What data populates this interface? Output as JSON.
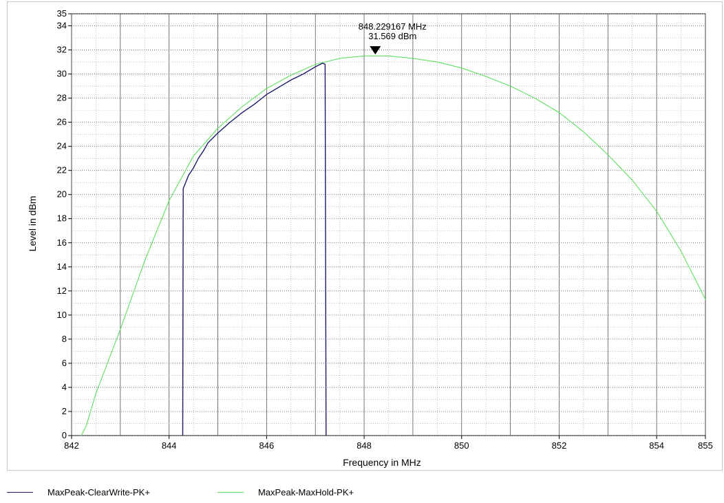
{
  "chart_data": {
    "type": "line",
    "xlabel": "Frequency in MHz",
    "ylabel": "Level in dBm",
    "xlim": [
      842,
      855
    ],
    "ylim": [
      0,
      35
    ],
    "x_ticks": [
      842,
      844,
      846,
      848,
      850,
      852,
      854,
      855
    ],
    "y_ticks": [
      0,
      2,
      4,
      6,
      8,
      10,
      12,
      14,
      16,
      18,
      20,
      22,
      24,
      26,
      28,
      30,
      32,
      34,
      35
    ],
    "grid": true,
    "legend_position": "bottom",
    "marker": {
      "x": 848.229167,
      "y": 31.569,
      "label_freq": "848.229167 MHz",
      "label_level": "31.569 dBm"
    },
    "series": [
      {
        "name": "MaxPeak-ClearWrite-PK+",
        "color": "#1a1a6e",
        "x": [
          844.28,
          844.29,
          844.32,
          844.4,
          844.5,
          844.6,
          844.7,
          844.8,
          845.0,
          845.25,
          845.5,
          845.75,
          846.0,
          846.25,
          846.5,
          846.75,
          847.0,
          847.15,
          847.2,
          847.22
        ],
        "y": [
          0,
          20.5,
          20.8,
          21.6,
          22.2,
          23.0,
          23.6,
          24.3,
          25.1,
          26.0,
          26.8,
          27.5,
          28.3,
          28.9,
          29.5,
          30.0,
          30.6,
          30.9,
          30.8,
          0
        ]
      },
      {
        "name": "MaxPeak-MaxHold-PK+",
        "color": "#5ee05e",
        "x": [
          842.2,
          842.3,
          842.5,
          843.0,
          843.5,
          844.0,
          844.5,
          845.0,
          845.5,
          846.0,
          846.5,
          847.0,
          847.5,
          848.0,
          848.5,
          849.0,
          849.5,
          850.0,
          850.5,
          851.0,
          851.5,
          852.0,
          852.5,
          853.0,
          853.5,
          854.0,
          854.5,
          855.0
        ],
        "y": [
          0,
          0.8,
          3.5,
          8.8,
          14.5,
          19.5,
          23.2,
          25.5,
          27.3,
          28.8,
          29.9,
          30.8,
          31.3,
          31.5,
          31.5,
          31.3,
          31.0,
          30.5,
          29.8,
          29.0,
          28.0,
          26.8,
          25.2,
          23.3,
          21.2,
          18.6,
          15.3,
          11.3
        ]
      }
    ]
  }
}
